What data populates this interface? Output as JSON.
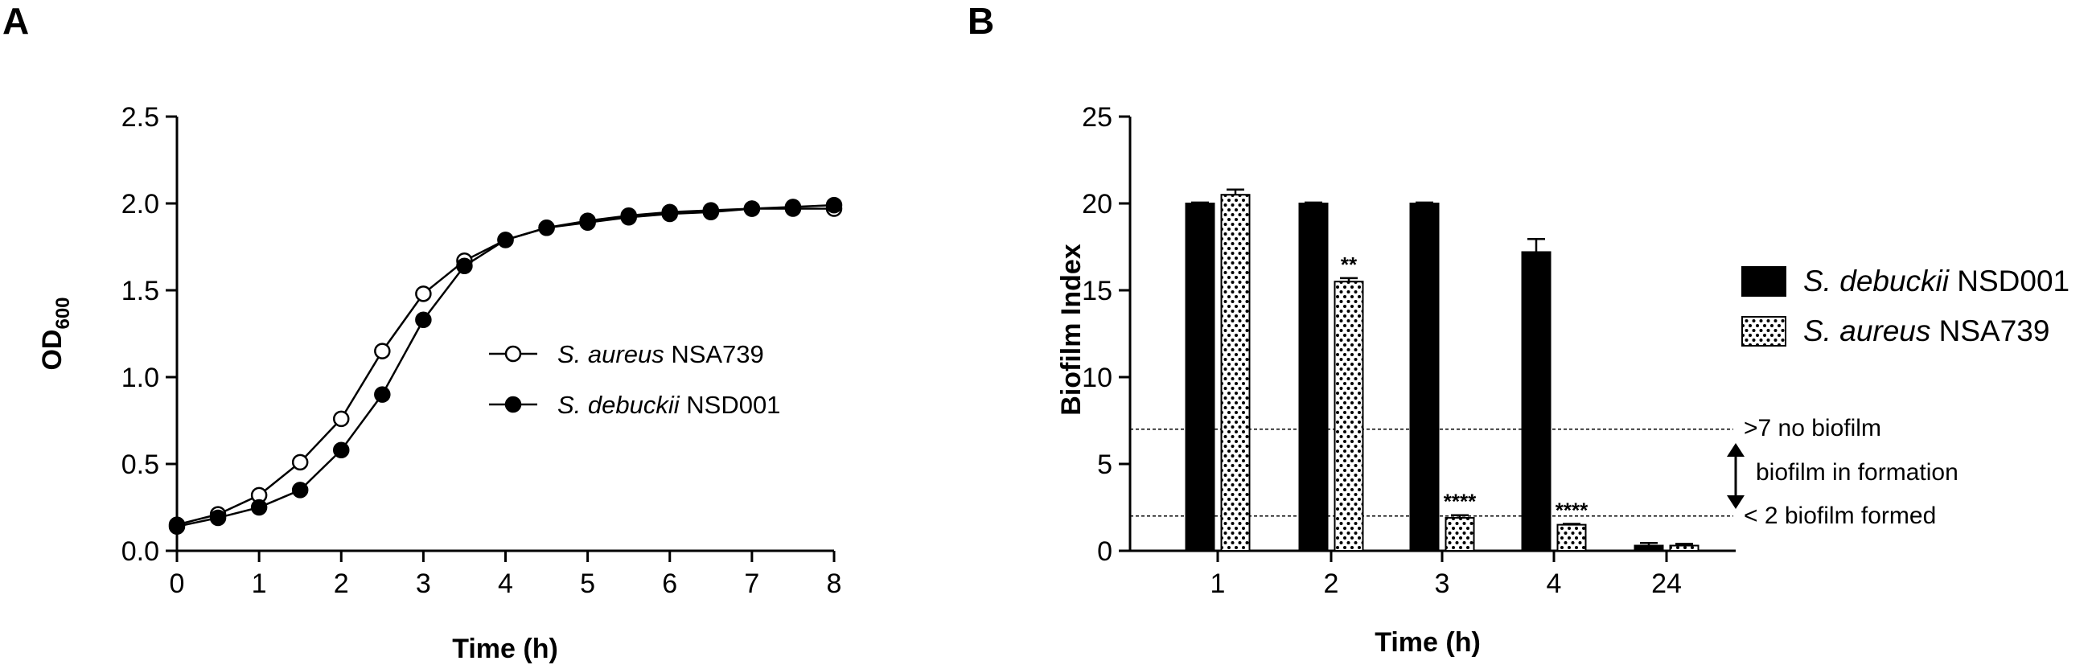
{
  "panels": [
    {
      "letter": "A"
    },
    {
      "letter": "B"
    }
  ],
  "chart_data": [
    {
      "type": "line",
      "panel": "A",
      "xlabel": "Time (h)",
      "ylabel": {
        "main": "OD",
        "sub": "600"
      },
      "xlim": [
        0,
        8
      ],
      "ylim": [
        0,
        2.5
      ],
      "xticks": [
        "0",
        "1",
        "2",
        "3",
        "4",
        "5",
        "6",
        "7",
        "8"
      ],
      "yticks": [
        "0.0",
        "0.5",
        "1.0",
        "1.5",
        "2.0",
        "2.5"
      ],
      "grid": false,
      "legend": "center-right",
      "x": [
        0,
        0.5,
        1,
        1.5,
        2,
        2.5,
        3,
        3.5,
        4,
        4.5,
        5,
        5.5,
        6,
        6.5,
        7,
        7.5,
        8
      ],
      "series": [
        {
          "name": {
            "italic": "S. aureus",
            "rest": " NSA739"
          },
          "marker": "open-circle",
          "values": [
            0.15,
            0.21,
            0.32,
            0.51,
            0.76,
            1.15,
            1.48,
            1.67,
            1.79,
            1.86,
            1.9,
            1.93,
            1.95,
            1.96,
            1.97,
            1.97,
            1.97
          ]
        },
        {
          "name": {
            "italic": "S. debuckii",
            "rest": " NSD001"
          },
          "marker": "filled-circle",
          "values": [
            0.14,
            0.19,
            0.25,
            0.35,
            0.58,
            0.9,
            1.33,
            1.64,
            1.79,
            1.86,
            1.89,
            1.92,
            1.94,
            1.95,
            1.97,
            1.98,
            1.99
          ]
        }
      ]
    },
    {
      "type": "bar",
      "panel": "B",
      "xlabel": "Time (h)",
      "ylabel": "Biofilm Index",
      "ylim": [
        0,
        25
      ],
      "yticks": [
        "0",
        "5",
        "10",
        "15",
        "20",
        "25"
      ],
      "grid": false,
      "legend": "right",
      "categories": [
        "1",
        "2",
        "3",
        "4",
        "24"
      ],
      "series": [
        {
          "name": {
            "italic": "S. debuckii",
            "rest": " NSD001"
          },
          "fill": "#000000",
          "values": [
            20.0,
            20.0,
            20.0,
            17.2,
            0.3
          ],
          "errors": [
            0.05,
            0.05,
            0.05,
            0.75,
            0.15
          ],
          "significance": [
            "",
            "",
            "",
            "",
            ""
          ]
        },
        {
          "name": {
            "italic": "S. aureus",
            "rest": " NSA739"
          },
          "fill": "dotted",
          "values": [
            20.5,
            15.5,
            1.9,
            1.5,
            0.3
          ],
          "errors": [
            0.3,
            0.2,
            0.15,
            0.05,
            0.1
          ],
          "significance": [
            "",
            "**",
            "****",
            "****",
            ""
          ]
        }
      ],
      "reference_lines": [
        {
          "y": 7,
          "label": ">7 no biofilm"
        },
        {
          "y": 2,
          "label": "< 2 biofilm formed"
        }
      ],
      "range_annotation": {
        "from": 2,
        "to": 7,
        "label": "biofilm in formation"
      }
    }
  ]
}
